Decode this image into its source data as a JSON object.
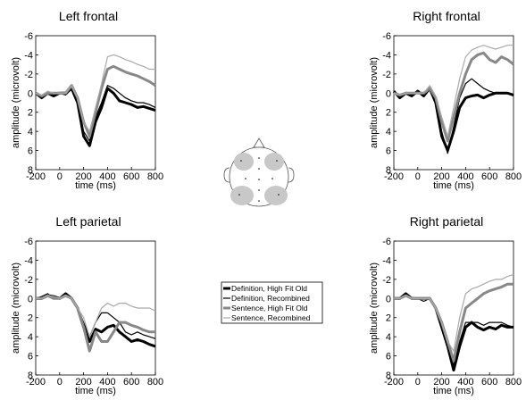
{
  "chart_data": [
    {
      "type": "line",
      "title": "Left frontal",
      "xlabel": "time (ms)",
      "ylabel": "amplitude (microvolt)",
      "xlim": [
        -200,
        800
      ],
      "ylim": [
        -6,
        8
      ],
      "y_inverted": true,
      "xticks": [
        -200,
        0,
        200,
        400,
        600,
        800
      ],
      "yticks": [
        -6,
        -4,
        -2,
        0,
        2,
        4,
        6,
        8
      ],
      "x": [
        -200,
        -150,
        -100,
        -50,
        0,
        50,
        100,
        150,
        200,
        250,
        300,
        350,
        400,
        450,
        500,
        550,
        600,
        650,
        700,
        750,
        800
      ],
      "series": [
        {
          "name": "Definition, High Fit Old",
          "color": "#000000",
          "line_width": 3,
          "values": [
            0,
            0.5,
            0,
            0.3,
            0,
            0,
            -0.5,
            1,
            4.5,
            5.5,
            3,
            1.5,
            -0.5,
            0,
            0.8,
            1,
            1.2,
            1.5,
            1.4,
            1.6,
            1.8
          ]
        },
        {
          "name": "Definition, Recombined",
          "color": "#000000",
          "line_width": 1.2,
          "values": [
            0,
            0.3,
            0,
            0.2,
            0,
            0.2,
            -0.4,
            1,
            4,
            5,
            2.5,
            1,
            -0.8,
            -0.5,
            0,
            0.5,
            0.8,
            1,
            1,
            1.2,
            1.5
          ]
        },
        {
          "name": "Sentence, High Fit Old",
          "color": "#888888",
          "line_width": 3,
          "values": [
            0,
            0.3,
            0,
            0,
            0,
            0,
            -0.8,
            0.5,
            3,
            4.5,
            2,
            -0.5,
            -2.5,
            -2.8,
            -2.5,
            -2.2,
            -2,
            -1.8,
            -1.5,
            -1.2,
            -0.8
          ]
        },
        {
          "name": "Sentence, Recombined",
          "color": "#aaaaaa",
          "line_width": 1.2,
          "values": [
            0,
            0.2,
            -0.2,
            0,
            0,
            0,
            -0.8,
            0.5,
            3,
            4,
            1.5,
            -1,
            -3.8,
            -4,
            -3.8,
            -3.5,
            -3.3,
            -3,
            -2.8,
            -2.5,
            -2.5
          ]
        }
      ]
    },
    {
      "type": "line",
      "title": "Right frontal",
      "xlabel": "time (ms)",
      "ylabel": "amplitude (microvolt)",
      "xlim": [
        -200,
        800
      ],
      "ylim": [
        -6,
        8
      ],
      "y_inverted": true,
      "xticks": [
        -200,
        0,
        200,
        400,
        600,
        800
      ],
      "yticks": [
        -6,
        -4,
        -2,
        0,
        2,
        4,
        6,
        8
      ],
      "x": [
        -200,
        -150,
        -100,
        -50,
        0,
        50,
        100,
        150,
        200,
        250,
        300,
        350,
        400,
        450,
        500,
        550,
        600,
        650,
        700,
        750,
        800
      ],
      "series": [
        {
          "values": [
            -0.2,
            0.5,
            0,
            0.3,
            -0.2,
            0.3,
            -0.5,
            1,
            4.5,
            6,
            4,
            1.5,
            0.5,
            0.3,
            0.2,
            0.5,
            0.2,
            0,
            0,
            0,
            0.2
          ]
        },
        {
          "values": [
            0,
            0.3,
            0,
            0.2,
            0,
            0.2,
            -0.5,
            0.8,
            4,
            6.3,
            3.5,
            0.5,
            -1,
            -1.5,
            -1,
            -0.5,
            -0.2,
            0,
            0,
            0,
            0.3
          ]
        },
        {
          "values": [
            0,
            0.2,
            0,
            0,
            0,
            0,
            -0.5,
            0.5,
            3,
            5,
            2.5,
            0,
            -2,
            -3.5,
            -4,
            -4.2,
            -3.5,
            -3.2,
            -3.8,
            -3.5,
            -3
          ]
        },
        {
          "values": [
            0,
            0.2,
            0,
            0,
            0,
            0,
            -0.8,
            0.3,
            2.5,
            4.5,
            1.5,
            -1.5,
            -3.8,
            -4.5,
            -4.8,
            -5,
            -4.8,
            -4.6,
            -4.8,
            -5,
            -5
          ]
        }
      ]
    },
    {
      "type": "line",
      "title": "Left parietal",
      "xlabel": "time (ms)",
      "ylabel": "amplitude (microvolt)",
      "xlim": [
        -200,
        800
      ],
      "ylim": [
        -6,
        8
      ],
      "y_inverted": true,
      "xticks": [
        -200,
        0,
        200,
        400,
        600,
        800
      ],
      "yticks": [
        -6,
        -4,
        -2,
        0,
        2,
        4,
        6,
        8
      ],
      "x": [
        -200,
        -150,
        -100,
        -50,
        0,
        50,
        100,
        150,
        200,
        250,
        300,
        350,
        400,
        450,
        500,
        550,
        600,
        650,
        700,
        750,
        800
      ],
      "series": [
        {
          "values": [
            0,
            0,
            -0.3,
            -0.2,
            0,
            -0.5,
            0,
            1,
            3,
            4.5,
            3.2,
            3.5,
            3,
            2.8,
            3.5,
            4,
            4.5,
            4.3,
            4.5,
            4.8,
            5
          ]
        },
        {
          "values": [
            0,
            -0.2,
            -0.5,
            0,
            0,
            -0.5,
            0,
            1,
            2.5,
            4,
            2.5,
            1.5,
            1.5,
            2,
            2.5,
            3.5,
            3.8,
            3.5,
            3.8,
            4,
            4.2
          ]
        },
        {
          "values": [
            0,
            0,
            -0.3,
            0,
            0,
            -0.3,
            0,
            1,
            3,
            5.5,
            3.5,
            4.5,
            4.5,
            3.5,
            2.5,
            2.5,
            2.8,
            3,
            3.3,
            3.5,
            3.5
          ]
        },
        {
          "values": [
            0,
            0,
            -0.3,
            -0.2,
            0,
            -0.3,
            0,
            1,
            2,
            4,
            2.5,
            1,
            0.5,
            0.8,
            0.5,
            0.5,
            0.8,
            1,
            1,
            1,
            1.3
          ]
        }
      ]
    },
    {
      "type": "line",
      "title": "Right parietal",
      "xlabel": "time (ms)",
      "ylabel": "amplitude (microvolt)",
      "xlim": [
        -200,
        800
      ],
      "ylim": [
        -6,
        8
      ],
      "y_inverted": true,
      "xticks": [
        -200,
        0,
        200,
        400,
        600,
        800
      ],
      "yticks": [
        -6,
        -4,
        -2,
        0,
        2,
        4,
        6,
        8
      ],
      "x": [
        -200,
        -150,
        -100,
        -50,
        0,
        50,
        100,
        150,
        200,
        250,
        300,
        350,
        400,
        450,
        500,
        550,
        600,
        650,
        700,
        750,
        800
      ],
      "series": [
        {
          "values": [
            0,
            0,
            -0.5,
            0,
            0,
            0,
            0,
            1,
            3,
            5,
            7.5,
            5,
            3,
            2.5,
            3,
            3.3,
            3,
            3.2,
            2.8,
            3,
            3
          ]
        },
        {
          "values": [
            0,
            0,
            -0.3,
            0,
            0,
            0.3,
            0,
            1,
            3,
            5,
            7,
            4.5,
            2.5,
            2.5,
            2.5,
            2.8,
            2.5,
            2.5,
            2.5,
            2.8,
            3
          ]
        },
        {
          "values": [
            0,
            0,
            -0.3,
            0,
            0,
            0,
            0,
            1,
            2.5,
            4.5,
            6.5,
            3.5,
            1,
            0.5,
            0,
            -0.5,
            -0.8,
            -1,
            -1.2,
            -1.5,
            -1.5
          ]
        },
        {
          "values": [
            0,
            0,
            -0.3,
            0,
            0,
            0,
            0,
            1,
            2.5,
            4.5,
            5.5,
            2,
            -0.5,
            -1,
            -1.2,
            -1.5,
            -1.8,
            -2,
            -2,
            -2.3,
            -2.5
          ]
        }
      ]
    }
  ]
}
